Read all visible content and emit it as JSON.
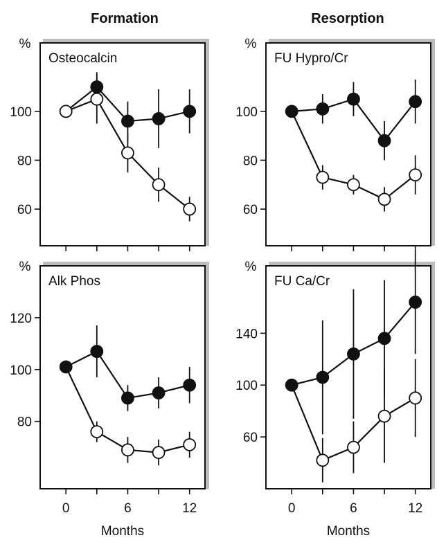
{
  "columns": {
    "left": "Formation",
    "right": "Resorption"
  },
  "chart_data": [
    {
      "type": "line",
      "title": "Osteocalcin",
      "unit": "%",
      "xlabel": "",
      "x": [
        0,
        3,
        6,
        9,
        12
      ],
      "xticks": [],
      "xlim": [
        -2.5,
        13.5
      ],
      "ylim": [
        45,
        128
      ],
      "yticks": [
        60,
        80,
        100
      ],
      "series": [
        {
          "marker": "filled",
          "values": [
            100,
            110,
            96,
            97,
            100
          ],
          "err": [
            0,
            6,
            8,
            12,
            9
          ]
        },
        {
          "marker": "open",
          "values": [
            100,
            105,
            83,
            70,
            60
          ],
          "err": [
            0,
            10,
            8,
            7,
            5
          ]
        }
      ]
    },
    {
      "type": "line",
      "title": "FU Hypro/Cr",
      "unit": "%",
      "xlabel": "",
      "x": [
        0,
        3,
        6,
        9,
        12
      ],
      "xticks": [],
      "xlim": [
        -2.5,
        13.5
      ],
      "ylim": [
        45,
        128
      ],
      "yticks": [
        60,
        80,
        100
      ],
      "series": [
        {
          "marker": "filled",
          "values": [
            100,
            101,
            105,
            88,
            104
          ],
          "err": [
            0,
            6,
            7,
            8,
            9
          ]
        },
        {
          "marker": "open",
          "values": [
            73,
            70,
            64,
            74
          ],
          "x": [
            3,
            6,
            9,
            12
          ],
          "err": [
            5,
            4,
            5,
            8
          ]
        }
      ],
      "open_starts_at": 100
    },
    {
      "type": "line",
      "title": "Alk Phos",
      "unit": "%",
      "xlabel": "Months",
      "x": [
        0,
        3,
        6,
        9,
        12
      ],
      "xticks": [
        "0",
        "6",
        "12"
      ],
      "xlim": [
        -2.5,
        13.5
      ],
      "ylim": [
        54,
        140
      ],
      "yticks": [
        80,
        100,
        120
      ],
      "series": [
        {
          "marker": "filled",
          "values": [
            101,
            107,
            89,
            91,
            94
          ],
          "err": [
            0,
            10,
            5,
            6,
            7
          ]
        },
        {
          "marker": "open",
          "values": [
            76,
            69,
            68,
            71
          ],
          "x": [
            3,
            6,
            9,
            12
          ],
          "err": [
            4,
            5,
            5,
            5
          ]
        }
      ],
      "open_starts_at": 101
    },
    {
      "type": "line",
      "title": "FU Ca/Cr",
      "unit": "%",
      "xlabel": "Months",
      "x": [
        0,
        3,
        6,
        9,
        12
      ],
      "xticks": [
        "0",
        "6",
        "12"
      ],
      "xlim": [
        -2.5,
        13.5
      ],
      "ylim": [
        20,
        192
      ],
      "yticks": [
        60,
        100,
        140
      ],
      "series": [
        {
          "marker": "filled",
          "values": [
            100,
            106,
            124,
            136,
            164
          ],
          "err": [
            0,
            44,
            50,
            45,
            40
          ]
        },
        {
          "marker": "open",
          "values": [
            42,
            52,
            76,
            90
          ],
          "x": [
            3,
            6,
            9,
            12
          ],
          "err": [
            17,
            20,
            36,
            30
          ]
        }
      ],
      "open_starts_at": 100
    }
  ]
}
